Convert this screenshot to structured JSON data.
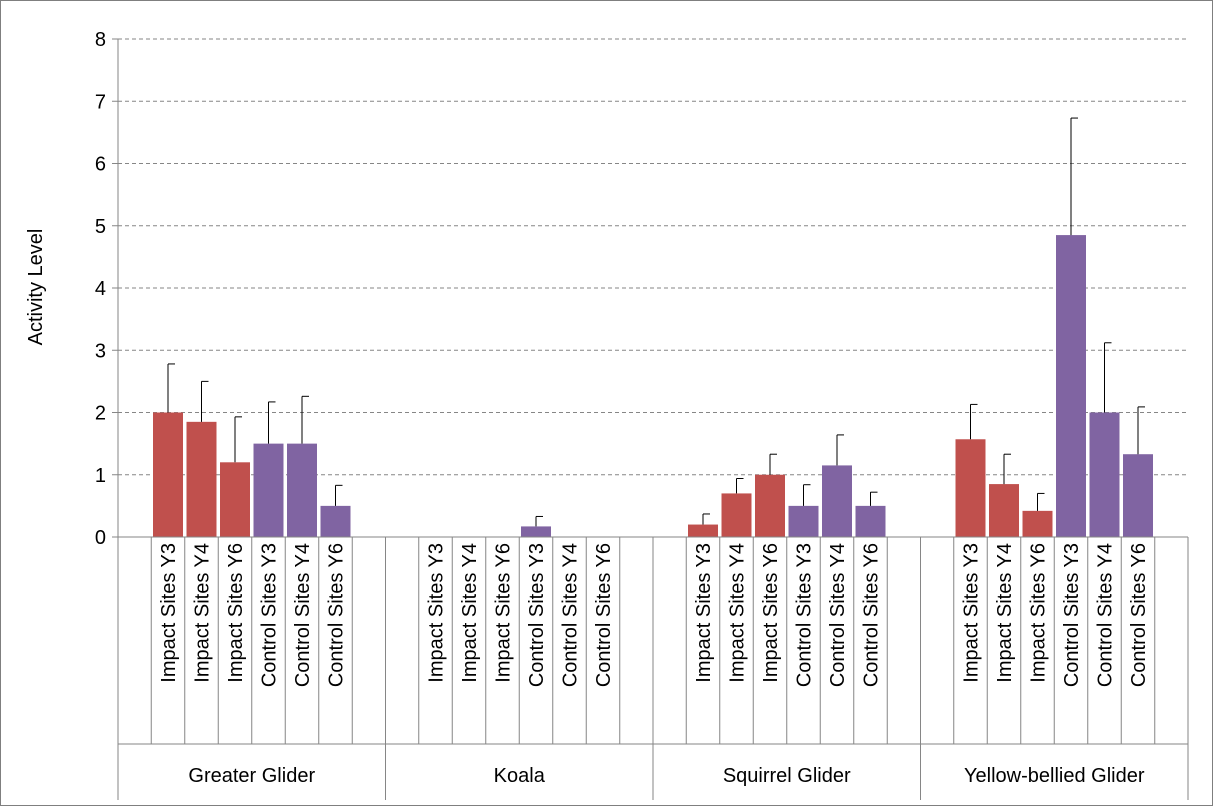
{
  "chart_data": {
    "type": "bar",
    "title": "",
    "xlabel": "",
    "ylabel": "Activity Level",
    "ylim": [
      0,
      8
    ],
    "yticks": [
      0,
      1,
      2,
      3,
      4,
      5,
      6,
      7,
      8
    ],
    "grid": true,
    "legend": "none",
    "colors": {
      "impact": "#c0504d",
      "control": "#8064a2"
    },
    "groups": [
      {
        "name": "Greater Glider",
        "bars": [
          {
            "label": "Impact Sites Y3",
            "site": "impact",
            "value": 2.0,
            "error": 0.78
          },
          {
            "label": "Impact Sites Y4",
            "site": "impact",
            "value": 1.85,
            "error": 0.65
          },
          {
            "label": "Impact Sites Y6",
            "site": "impact",
            "value": 1.2,
            "error": 0.73
          },
          {
            "label": "Control Sites Y3",
            "site": "control",
            "value": 1.5,
            "error": 0.67
          },
          {
            "label": "Control Sites Y4",
            "site": "control",
            "value": 1.5,
            "error": 0.76
          },
          {
            "label": "Control Sites Y6",
            "site": "control",
            "value": 0.5,
            "error": 0.33
          }
        ]
      },
      {
        "name": "Koala",
        "bars": [
          {
            "label": "Impact Sites Y3",
            "site": "impact",
            "value": 0,
            "error": 0
          },
          {
            "label": "Impact Sites Y4",
            "site": "impact",
            "value": 0,
            "error": 0
          },
          {
            "label": "Impact Sites Y6",
            "site": "impact",
            "value": 0,
            "error": 0
          },
          {
            "label": "Control Sites Y3",
            "site": "control",
            "value": 0.17,
            "error": 0.16
          },
          {
            "label": "Control Sites Y4",
            "site": "control",
            "value": 0,
            "error": 0
          },
          {
            "label": "Control Sites Y6",
            "site": "control",
            "value": 0,
            "error": 0
          }
        ]
      },
      {
        "name": "Squirrel Glider",
        "bars": [
          {
            "label": "Impact Sites Y3",
            "site": "impact",
            "value": 0.2,
            "error": 0.17
          },
          {
            "label": "Impact Sites Y4",
            "site": "impact",
            "value": 0.7,
            "error": 0.24
          },
          {
            "label": "Impact Sites Y6",
            "site": "impact",
            "value": 1.0,
            "error": 0.33
          },
          {
            "label": "Control Sites Y3",
            "site": "control",
            "value": 0.5,
            "error": 0.34
          },
          {
            "label": "Control Sites Y4",
            "site": "control",
            "value": 1.15,
            "error": 0.49
          },
          {
            "label": "Control Sites Y6",
            "site": "control",
            "value": 0.5,
            "error": 0.22
          }
        ]
      },
      {
        "name": "Yellow-bellied Glider",
        "bars": [
          {
            "label": "Impact Sites Y3",
            "site": "impact",
            "value": 1.57,
            "error": 0.56
          },
          {
            "label": "Impact Sites Y4",
            "site": "impact",
            "value": 0.85,
            "error": 0.48
          },
          {
            "label": "Impact Sites Y6",
            "site": "impact",
            "value": 0.42,
            "error": 0.28
          },
          {
            "label": "Control Sites Y3",
            "site": "control",
            "value": 4.85,
            "error": 1.88
          },
          {
            "label": "Control Sites Y4",
            "site": "control",
            "value": 2.0,
            "error": 1.12
          },
          {
            "label": "Control Sites Y6",
            "site": "control",
            "value": 1.33,
            "error": 0.76
          }
        ]
      }
    ]
  }
}
